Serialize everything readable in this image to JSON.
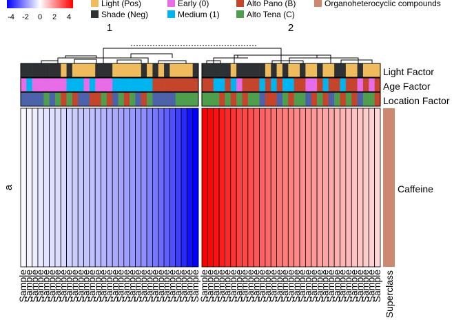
{
  "chart_data": {
    "type": "heatmap",
    "color_scale": {
      "ticks": [
        "-4",
        "-2",
        "0",
        "2",
        "4"
      ],
      "min": -4.5,
      "max": 4.5,
      "low_color": "#0000ff",
      "mid_color": "#ffffff",
      "high_color": "#ff0000"
    },
    "legend": {
      "light": [
        {
          "label": "Light (Pos)",
          "color": "#f0bb5c"
        },
        {
          "label": "Shade (Neg)",
          "color": "#2e3134"
        }
      ],
      "age": [
        {
          "label": "Early (0)",
          "color": "#e86ce8"
        },
        {
          "label": "Medium (1)",
          "color": "#00b4f0"
        }
      ],
      "location": [
        {
          "label": "Alto Pano (B)",
          "color": "#c4452c"
        },
        {
          "label": "Alto Tena (C)",
          "color": "#4e9e4e"
        }
      ],
      "superclass": [
        {
          "label": "Organoheterocyclic compounds",
          "color": "#cd8872"
        }
      ]
    },
    "cluster_labels": [
      "1",
      "2"
    ],
    "row_title": "a",
    "row_labels": [
      "Caffeine"
    ],
    "annotation_labels": [
      "Light Factor",
      "Age Factor",
      "Location Factor"
    ],
    "superclass_label": "Superclass",
    "column_label": "Sample",
    "clusters": [
      {
        "name": "1",
        "values": [
          -0.1,
          -0.2,
          -0.3,
          -0.4,
          -0.5,
          -0.55,
          -0.6,
          -0.7,
          -0.8,
          -0.9,
          -1.0,
          -1.05,
          -1.1,
          -1.2,
          -1.3,
          -1.4,
          -1.5,
          -1.6,
          -1.7,
          -1.8,
          -1.9,
          -2.0,
          -2.2,
          -2.4,
          -2.6,
          -2.8,
          -3.1,
          -3.4,
          -3.8,
          -4.2,
          -4.5
        ],
        "light": [
          "Shade (Neg)",
          "Shade (Neg)",
          "Shade (Neg)",
          "Shade (Neg)",
          "Shade (Neg)",
          "Shade (Neg)",
          "Shade (Neg)",
          "Light (Pos)",
          "Shade (Neg)",
          "Light (Pos)",
          "Light (Pos)",
          "Light (Pos)",
          "Light (Pos)",
          "Shade (Neg)",
          "Shade (Neg)",
          "Shade (Neg)",
          "Light (Pos)",
          "Light (Pos)",
          "Light (Pos)",
          "Light (Pos)",
          "Light (Pos)",
          "Shade (Neg)",
          "Light (Pos)",
          "Shade (Neg)",
          "Light (Pos)",
          "Shade (Neg)",
          "Light (Pos)",
          "Light (Pos)",
          "Light (Pos)",
          "Light (Pos)",
          "Shade (Neg)"
        ],
        "age": [
          "Early (0)",
          "Medium (1)",
          "Early (0)",
          "Early (0)",
          "Early (0)",
          "Early (0)",
          "Early (0)",
          "Early (0)",
          "Medium (1)",
          "Medium (1)",
          "Medium (1)",
          "Early (0)",
          "Medium (1)",
          "Early (0)",
          "Early (0)",
          "Early (0)",
          "Medium (1)",
          "Medium (1)",
          "Medium (1)",
          "Medium (1)",
          "Medium (1)",
          "Medium (1)",
          "Medium (1)",
          "Alto Pano (B)",
          "Alto Pano (B)",
          "Alto Pano (B)",
          "Alto Pano (B)",
          "Alto Pano (B)",
          "Alto Pano (B)",
          "Alto Pano (B)",
          "Alto Pano (B)"
        ],
        "location": [
          "Blue",
          "Blue",
          "Blue",
          "Blue",
          "Alto Tena (C)",
          "Blue",
          "Alto Tena (C)",
          "Alto Pano (B)",
          "Alto Tena (C)",
          "Alto Pano (B)",
          "Blue",
          "Blue",
          "Alto Pano (B)",
          "Alto Pano (B)",
          "Alto Tena (C)",
          "Alto Pano (B)",
          "Blue",
          "Alto Tena (C)",
          "Alto Pano (B)",
          "Alto Tena (C)",
          "Blue",
          "Alto Pano (B)",
          "Alto Tena (C)",
          "Blue",
          "Blue",
          "Blue",
          "Blue",
          "Alto Tena (C)",
          "Alto Tena (C)",
          "Alto Tena (C)",
          "Alto Tena (C)"
        ]
      },
      {
        "name": "2",
        "values": [
          4.6,
          4.4,
          4.2,
          4.0,
          3.8,
          3.6,
          3.4,
          3.25,
          3.1,
          2.95,
          2.8,
          2.65,
          2.5,
          2.4,
          2.3,
          2.2,
          2.1,
          2.0,
          1.9,
          1.8,
          1.7,
          1.6,
          1.5,
          1.4,
          1.3,
          1.2,
          1.1,
          1.0,
          0.9,
          0.8,
          0.7
        ],
        "light": [
          "Shade (Neg)",
          "Shade (Neg)",
          "Shade (Neg)",
          "Shade (Neg)",
          "Shade (Neg)",
          "Light (Pos)",
          "Shade (Neg)",
          "Shade (Neg)",
          "Shade (Neg)",
          "Shade (Neg)",
          "Shade (Neg)",
          "Light (Pos)",
          "Shade (Neg)",
          "Light (Pos)",
          "Shade (Neg)",
          "Light (Pos)",
          "Light (Pos)",
          "Shade (Neg)",
          "Light (Pos)",
          "Light (Pos)",
          "Shade (Neg)",
          "Light (Pos)",
          "Light (Pos)",
          "Shade (Neg)",
          "Shade (Neg)",
          "Light (Pos)",
          "Light (Pos)",
          "Shade (Neg)",
          "Light (Pos)",
          "Light (Pos)",
          "Light (Pos)"
        ],
        "age": [
          "Alto Pano (B)",
          "Alto Pano (B)",
          "Medium (1)",
          "Medium (1)",
          "Alto Pano (B)",
          "Medium (1)",
          "Early (0)",
          "Alto Pano (B)",
          "Alto Pano (B)",
          "Alto Pano (B)",
          "Medium (1)",
          "Alto Pano (B)",
          "Medium (1)",
          "Alto Pano (B)",
          "Medium (1)",
          "Medium (1)",
          "Alto Pano (B)",
          "Alto Pano (B)",
          "Early (0)",
          "Early (0)",
          "Alto Pano (B)",
          "Medium (1)",
          "Alto Pano (B)",
          "Alto Pano (B)",
          "Medium (1)",
          "Alto Pano (B)",
          "Alto Pano (B)",
          "Early (0)",
          "Alto Pano (B)",
          "Early (0)",
          "Alto Pano (B)"
        ],
        "location": [
          "Alto Tena (C)",
          "Alto Tena (C)",
          "Alto Tena (C)",
          "Alto Pano (B)",
          "Alto Tena (C)",
          "Alto Pano (B)",
          "Alto Tena (C)",
          "Alto Pano (B)",
          "Alto Tena (C)",
          "Alto Tena (C)",
          "Blue",
          "Alto Pano (B)",
          "Alto Pano (B)",
          "Blue",
          "Alto Tena (C)",
          "Alto Pano (B)",
          "Alto Tena (C)",
          "Alto Tena (C)",
          "Blue",
          "Alto Pano (B)",
          "Alto Tena (C)",
          "Alto Pano (B)",
          "Blue",
          "Alto Tena (C)",
          "Alto Pano (B)",
          "Alto Tena (C)",
          "Alto Pano (B)",
          "Blue",
          "Alto Tena (C)",
          "Alto Tena (C)",
          "Alto Pano (B)"
        ]
      }
    ]
  }
}
